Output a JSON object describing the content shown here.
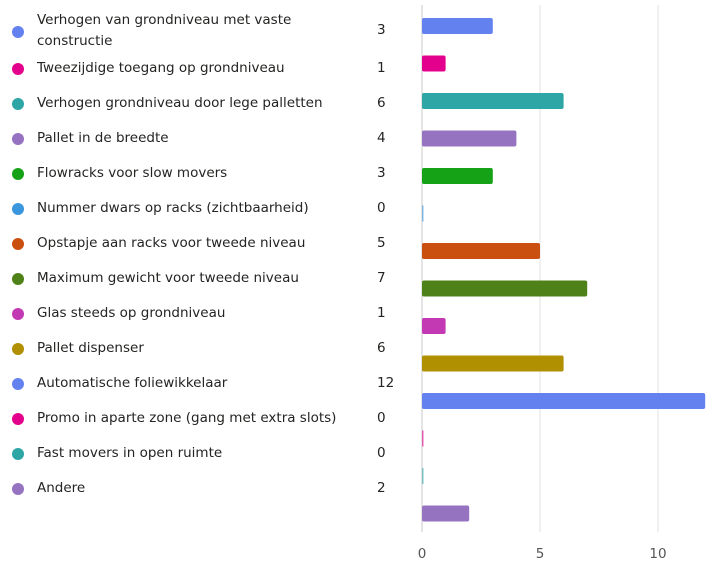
{
  "chart_data": {
    "type": "bar",
    "orientation": "horizontal",
    "categories": [
      "Verhogen van grondniveau met vaste constructie",
      "Tweezijdige toegang op grondniveau",
      "Verhogen grondniveau door lege palletten",
      "Pallet in de breedte",
      "Flowracks voor slow movers",
      "Nummer dwars op racks (zichtbaarheid)",
      "Opstapje aan racks voor tweede niveau",
      "Maximum gewicht voor tweede niveau",
      "Glas steeds op grondniveau",
      "Pallet dispenser",
      "Automatische foliewikkelaar",
      "Promo in aparte zone (gang met extra slots)",
      "Fast movers  in open ruimte",
      "Andere"
    ],
    "values": [
      3,
      1,
      6,
      4,
      3,
      0,
      5,
      7,
      1,
      6,
      12,
      0,
      0,
      2
    ],
    "colors": [
      "#6481f0",
      "#e3008c",
      "#2ea6a6",
      "#9573c1",
      "#16a216",
      "#3a96dd",
      "#ca5010",
      "#4e8218",
      "#c239b3",
      "#b08f00",
      "#6481f0",
      "#e3008c",
      "#2ea6a6",
      "#9573c1"
    ],
    "xlim": [
      0,
      12
    ],
    "xticks": [
      "0",
      "5",
      "10"
    ],
    "xtick_values": [
      0,
      5,
      10
    ],
    "grid": true,
    "legend": "left"
  }
}
